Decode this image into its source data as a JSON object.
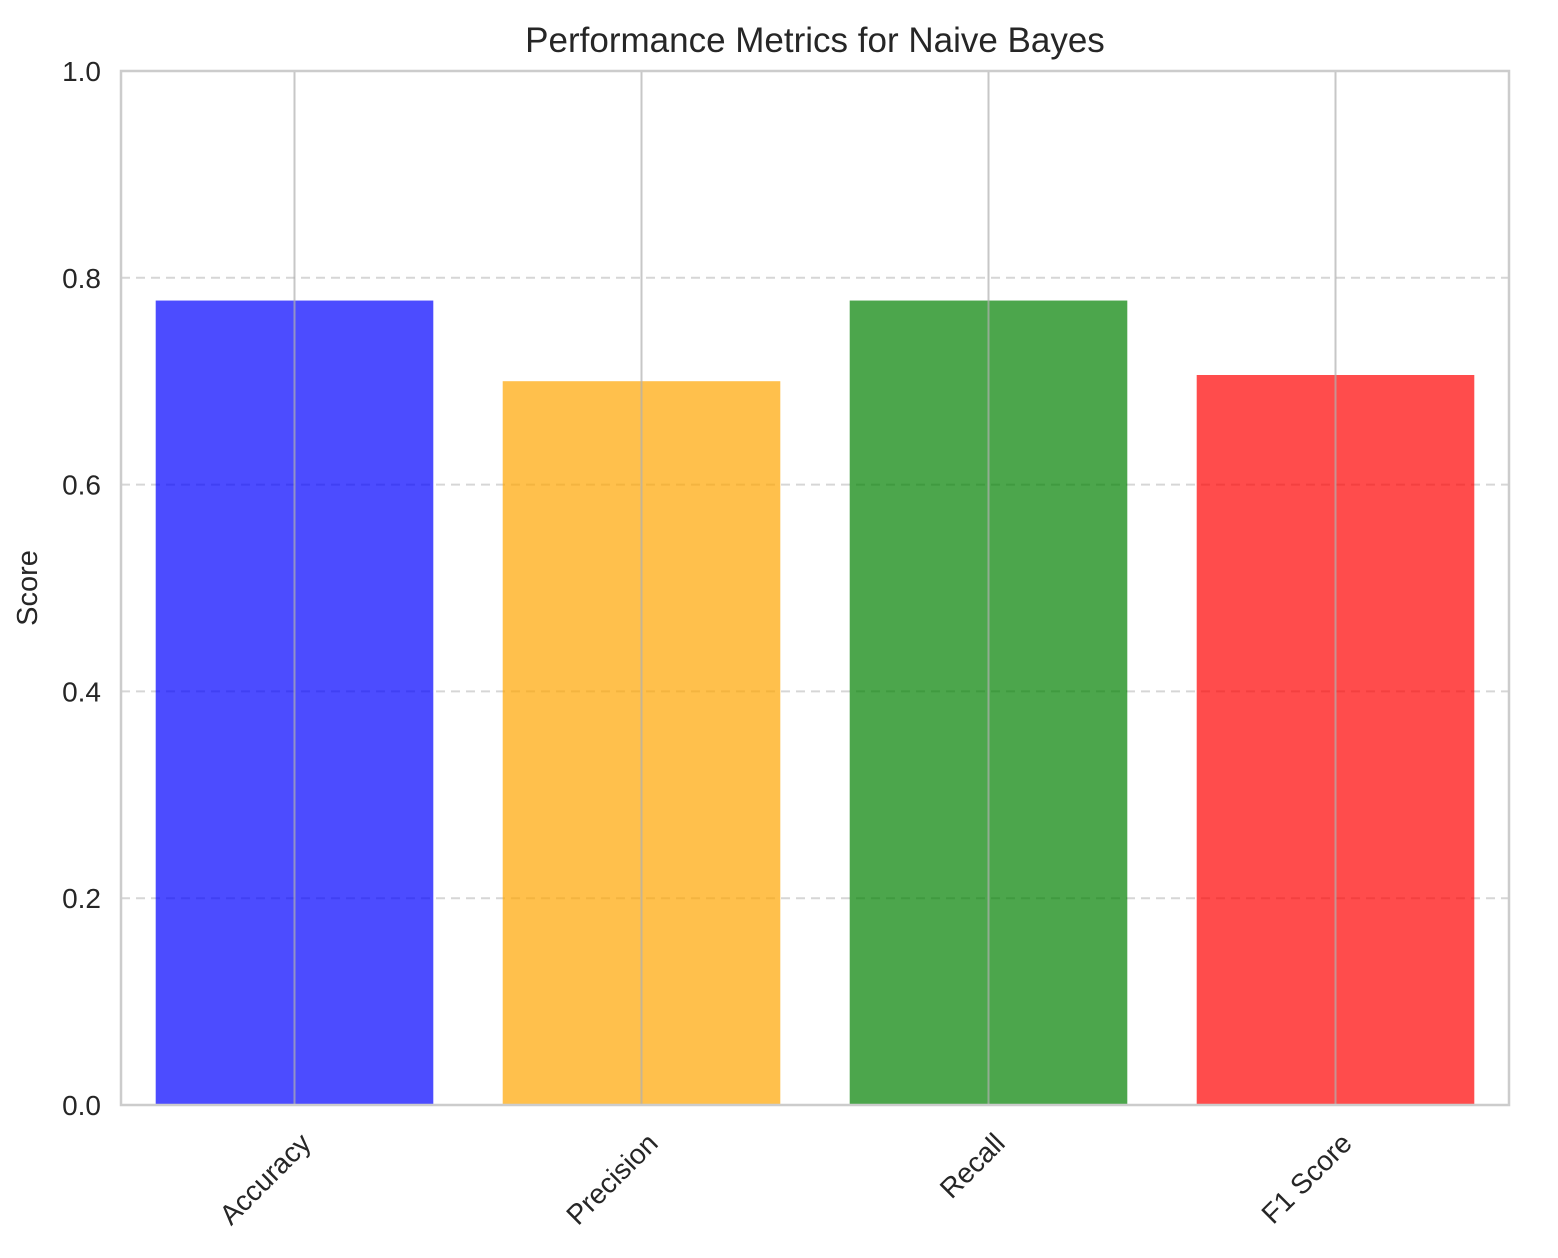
{
  "chart_data": {
    "type": "bar",
    "title": "Performance Metrics for Naive Bayes",
    "xlabel": "",
    "ylabel": "Score",
    "categories": [
      "Accuracy",
      "Precision",
      "Recall",
      "F1 Score"
    ],
    "values": [
      0.778,
      0.7,
      0.778,
      0.706
    ],
    "colors": [
      "#0000ff",
      "#ffa500",
      "#008000",
      "#ff0000"
    ],
    "bar_opacity": 0.7,
    "ylim": [
      0.0,
      1.0
    ],
    "yticks": [
      0.0,
      0.2,
      0.4,
      0.6,
      0.8,
      1.0
    ],
    "ytick_labels": [
      "0.0",
      "0.2",
      "0.4",
      "0.6",
      "0.8",
      "1.0"
    ],
    "grid": {
      "vertical": true,
      "horizontal_dashed": true
    },
    "xtick_rotation_deg": 45,
    "legend": "none"
  }
}
